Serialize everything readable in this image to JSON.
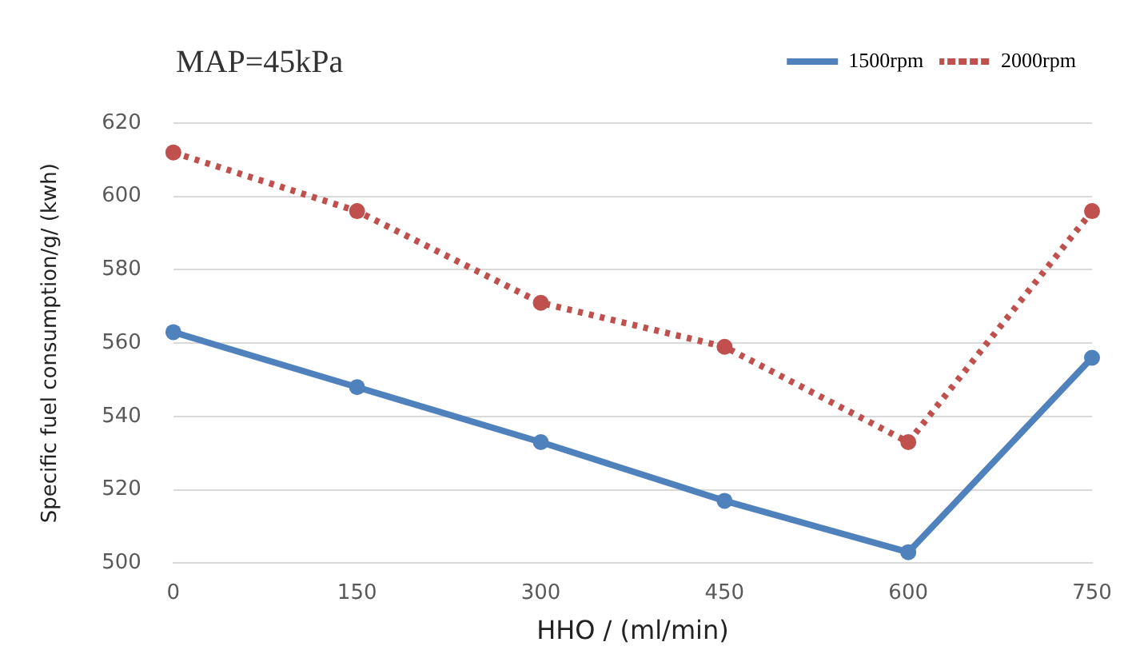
{
  "chart_data": {
    "type": "line",
    "title": "MAP=45kPa",
    "xlabel": "HHO / (ml/min)",
    "ylabel": "Specific fuel consumption/g/ (kwh)",
    "categories": [
      "0",
      "150",
      "300",
      "450",
      "600",
      "750"
    ],
    "series": [
      {
        "name": "1500rpm",
        "color": "#4f81bd",
        "line_style": "solid",
        "values": [
          563,
          548,
          533,
          517,
          503,
          556
        ]
      },
      {
        "name": "2000rpm",
        "color": "#c0504d",
        "line_style": "dotted",
        "values": [
          612,
          596,
          571,
          559,
          533,
          596
        ]
      }
    ],
    "ylim": [
      500,
      620
    ],
    "yticks": [
      500,
      520,
      540,
      560,
      580,
      600,
      620
    ],
    "grid": "y",
    "legend": "top right",
    "marker": "circle"
  }
}
